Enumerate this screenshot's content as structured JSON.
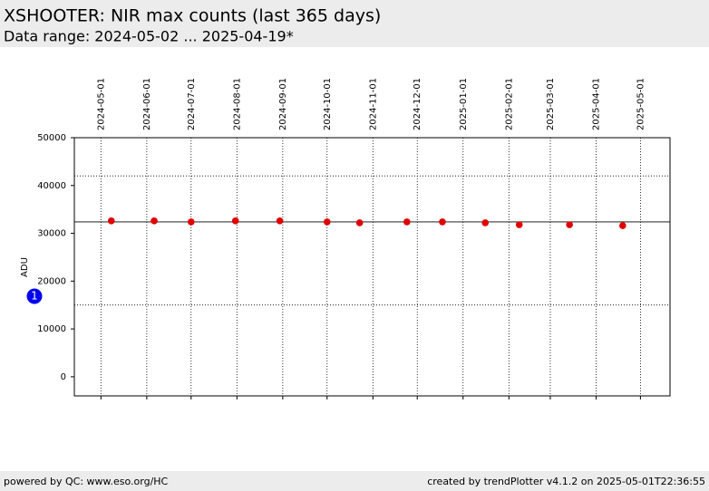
{
  "chart_data": {
    "type": "scatter",
    "title": "XSHOOTER: NIR max counts (last 365 days)",
    "subtitle": "Data range: 2024-05-02 ... 2025-04-19*",
    "ylabel": "ADU",
    "annotation": "1",
    "x": [
      "2024-05-08",
      "2024-06-06",
      "2024-07-01",
      "2024-07-31",
      "2024-08-30",
      "2024-10-01",
      "2024-10-23",
      "2024-11-24",
      "2024-12-18",
      "2025-01-16",
      "2025-02-08",
      "2025-03-14",
      "2025-04-19"
    ],
    "series": [
      {
        "color": "#e00000",
        "values": [
          32600,
          32600,
          32400,
          32600,
          32600,
          32400,
          32200,
          32400,
          32400,
          32200,
          31800,
          31800,
          31600
        ]
      }
    ],
    "xlim": [
      "2024-04-13",
      "2025-05-21"
    ],
    "xticks": [
      "2024-05-01",
      "2024-06-01",
      "2024-07-01",
      "2024-08-01",
      "2024-09-01",
      "2024-10-01",
      "2024-11-01",
      "2024-12-01",
      "2025-01-01",
      "2025-02-01",
      "2025-03-01",
      "2025-04-01",
      "2025-05-01"
    ],
    "ylim": [
      -4000,
      50000
    ],
    "yticks": [
      0,
      10000,
      20000,
      30000,
      40000,
      50000
    ],
    "grid": true,
    "hlines": [
      {
        "value": 32400,
        "style": "solid"
      },
      {
        "value": 42000,
        "style": "dotted"
      },
      {
        "value": 15000,
        "style": "dotted"
      }
    ]
  },
  "footer": {
    "left": "powered by QC: www.eso.org/HC",
    "right": "created by trendPlotter v4.1.2 on 2025-05-01T22:36:55"
  }
}
